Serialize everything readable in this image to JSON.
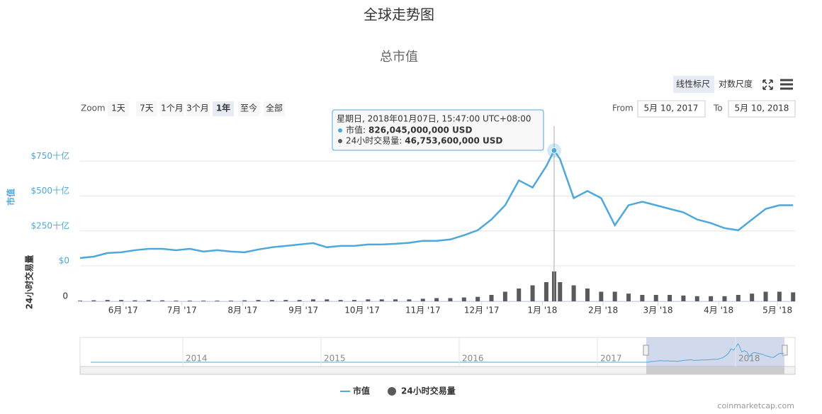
{
  "chart_data": {
    "type": "line",
    "title": "全球走势图",
    "subtitle": "总市值",
    "scale_buttons": [
      "线性标尺",
      "对数尺度"
    ],
    "zoom_label": "Zoom",
    "zoom_buttons": [
      "1天",
      "7天",
      "1个月",
      "3个月",
      "1年",
      "至今",
      "全部"
    ],
    "zoom_selected": 4,
    "from_label": "From",
    "from_value": "5月 10, 2017",
    "to_label": "To",
    "to_value": "5月 10, 2018",
    "y_label": "市值",
    "y2_label": "24小时交易量",
    "x": [
      "2017-05-10",
      "2017-05-17",
      "2017-05-24",
      "2017-05-31",
      "2017-06-07",
      "2017-06-14",
      "2017-06-21",
      "2017-06-28",
      "2017-07-05",
      "2017-07-12",
      "2017-07-19",
      "2017-07-26",
      "2017-08-02",
      "2017-08-09",
      "2017-08-16",
      "2017-08-23",
      "2017-08-30",
      "2017-09-06",
      "2017-09-13",
      "2017-09-20",
      "2017-09-27",
      "2017-10-04",
      "2017-10-11",
      "2017-10-18",
      "2017-10-25",
      "2017-11-01",
      "2017-11-08",
      "2017-11-15",
      "2017-11-22",
      "2017-11-29",
      "2017-12-06",
      "2017-12-13",
      "2017-12-20",
      "2017-12-27",
      "2018-01-03",
      "2018-01-07",
      "2018-01-10",
      "2018-01-17",
      "2018-01-24",
      "2018-01-31",
      "2018-02-07",
      "2018-02-14",
      "2018-02-21",
      "2018-02-28",
      "2018-03-07",
      "2018-03-14",
      "2018-03-21",
      "2018-03-28",
      "2018-04-04",
      "2018-04-11",
      "2018-04-18",
      "2018-04-25",
      "2018-05-02",
      "2018-05-09"
    ],
    "xlim": [
      "2017-05-10",
      "2018-05-10"
    ],
    "xticks": [
      {
        "value": "2017-06-01",
        "label": "6月 '17"
      },
      {
        "value": "2017-07-01",
        "label": "7月 '17"
      },
      {
        "value": "2017-08-01",
        "label": "8月 '17"
      },
      {
        "value": "2017-09-01",
        "label": "9月 '17"
      },
      {
        "value": "2017-10-01",
        "label": "10月 '17"
      },
      {
        "value": "2017-11-01",
        "label": "11月 '17"
      },
      {
        "value": "2017-12-01",
        "label": "12月 '17"
      },
      {
        "value": "2018-01-01",
        "label": "1月 '18"
      },
      {
        "value": "2018-02-01",
        "label": "2月 '18"
      },
      {
        "value": "2018-03-01",
        "label": "3月 '18"
      },
      {
        "value": "2018-04-01",
        "label": "4月 '18"
      },
      {
        "value": "2018-05-01",
        "label": "5月 '18"
      }
    ],
    "ylim": [
      0,
      1000
    ],
    "yticks": [
      {
        "value": 0,
        "label": "$0"
      },
      {
        "value": 250,
        "label": "$250十亿"
      },
      {
        "value": 500,
        "label": "$500十亿"
      },
      {
        "value": 750,
        "label": "$750十亿"
      }
    ],
    "y2lim": [
      0,
      50
    ],
    "y2ticks": [
      0
    ],
    "grid": true,
    "series": [
      {
        "name": "市值",
        "color": "#4fa8dc",
        "values": [
          56,
          66,
          92,
          97,
          112,
          122,
          122,
          112,
          122,
          102,
          112,
          102,
          97,
          117,
          133,
          143,
          153,
          163,
          133,
          143,
          143,
          153,
          153,
          158,
          165,
          179,
          179,
          189,
          219,
          255,
          332,
          434,
          612,
          561,
          714,
          826.045,
          765,
          485,
          536,
          485,
          291,
          434,
          459,
          434,
          408,
          383,
          332,
          306,
          270,
          255,
          332,
          408,
          434,
          434
        ]
      },
      {
        "name": "24小时交易量",
        "type": "bar",
        "axis": "y2",
        "color": "#5a5a5a",
        "values": [
          1,
          1.5,
          2,
          2,
          1.5,
          2,
          1.5,
          1,
          1,
          1,
          1,
          1,
          1.5,
          2,
          2,
          2,
          2,
          3,
          3,
          2,
          2,
          3,
          3,
          3,
          3,
          4,
          5,
          5,
          6,
          7,
          10,
          15,
          20,
          25,
          30,
          46.7536,
          30,
          25,
          20,
          15,
          15,
          12,
          10,
          10,
          10,
          9,
          8,
          8,
          8,
          10,
          12,
          15,
          15,
          14
        ]
      }
    ],
    "tooltip": {
      "index": 35,
      "title": "星期日, 2018年01月07日, 15:47:00 UTC+08:00",
      "value_labels": [
        "826,045,000,000 USD",
        "46,753,600,000 USD"
      ]
    },
    "navigator_labels": [
      "2014",
      "2015",
      "2016",
      "2017",
      "2018"
    ],
    "credit": "coinmarketcap.com"
  }
}
